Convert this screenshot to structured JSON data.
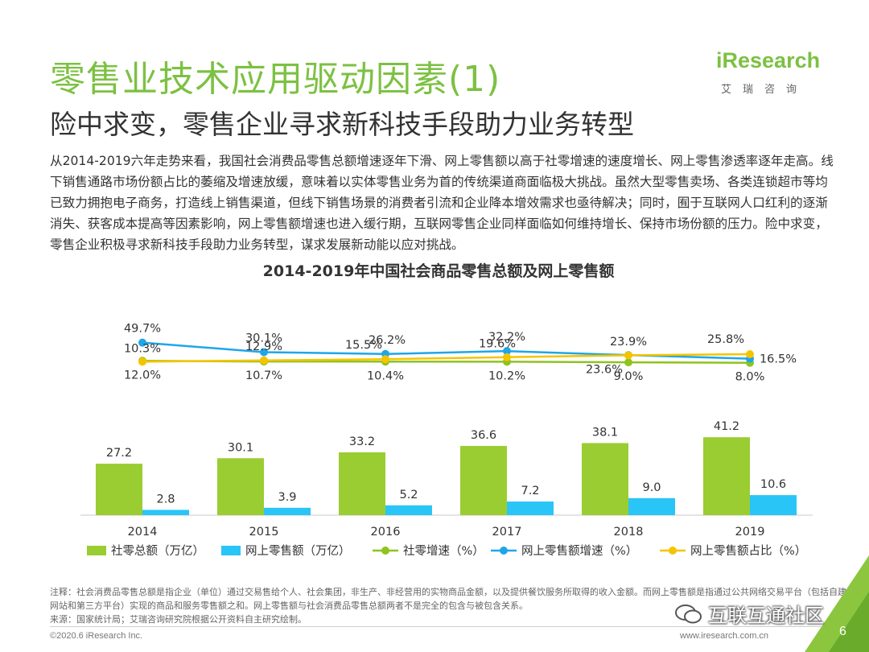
{
  "header": {
    "title": "零售业技术应用驱动因素(1)",
    "subtitle": "险中求变，零售企业寻求新科技手段助力业务转型"
  },
  "logo": {
    "main": "iResearch",
    "sub": "艾瑞咨询"
  },
  "body_text": "从2014-2019六年走势来看，我国社会消费品零售总额增速逐年下滑、网上零售额以高于社零增速的速度增长、网上零售渗透率逐年走高。线下销售通路市场份额占比的萎缩及增速放缓，意味着以实体零售业务为首的传统渠道商面临极大挑战。虽然大型零售卖场、各类连锁超市等均已致力拥抱电子商务，打造线上销售渠道，但线下销售场景的消费者引流和企业降本增效需求也亟待解决；同时，囿于互联网人口红利的逐渐消失、获客成本提高等因素影响，网上零售额增速也进入缓行期，互联网零售企业同样面临如何维持增长、保持市场份额的压力。险中求变，零售企业积极寻求新科技手段助力业务转型，谋求发展新动能以应对挑战。",
  "chart_data": {
    "type": "bar",
    "title": "2014-2019年中国社会商品零售总额及网上零售额",
    "categories": [
      "2014",
      "2015",
      "2016",
      "2017",
      "2018",
      "2019"
    ],
    "bar_series": [
      {
        "name": "社零总额（万亿）",
        "color": "#9acd32",
        "values": [
          27.2,
          30.1,
          33.2,
          36.6,
          38.1,
          41.2
        ],
        "labels": [
          "27.2",
          "30.1",
          "33.2",
          "36.6",
          "38.1",
          "41.2"
        ]
      },
      {
        "name": "网上零售额（万亿）",
        "color": "#29c5f6",
        "values": [
          2.8,
          3.9,
          5.2,
          7.2,
          9.0,
          10.6
        ],
        "labels": [
          "2.8",
          "3.9",
          "5.2",
          "7.2",
          "9.0",
          "10.6"
        ]
      }
    ],
    "line_series": [
      {
        "name": "社零增速（%）",
        "color": "#8fc31f",
        "values": [
          12.0,
          10.7,
          10.4,
          10.2,
          9.0,
          8.0
        ],
        "labels": [
          "12.0%",
          "10.7%",
          "10.4%",
          "10.2%",
          "9.0%",
          "8.0%"
        ]
      },
      {
        "name": "网上零售额增速（%）",
        "color": "#1fa6e8",
        "values": [
          49.7,
          30.1,
          26.2,
          32.2,
          23.9,
          16.5
        ],
        "labels": [
          "49.7%",
          "30.1%",
          "26.2%",
          "32.2%",
          "23.9%",
          "16.5%"
        ]
      },
      {
        "name": "网上零售额占比（%）",
        "color": "#f5c400",
        "values": [
          10.3,
          12.9,
          15.5,
          19.6,
          23.6,
          25.8
        ],
        "labels": [
          "10.3%",
          "12.9%",
          "15.5%",
          "19.6%",
          "23.6%",
          "25.8%"
        ]
      }
    ],
    "legend_position": "bottom",
    "grid": false
  },
  "footnote": {
    "note": "注释：社会消费品零售总额是指企业（单位）通过交易售给个人、社会集团，非生产、非经营用的实物商品金额，以及提供餐饮服务所取得的收入金额。而网上零售额是指通过公共网络交易平台（包括自建网站和第三方平台）实现的商品和服务零售额之和。网上零售额与社会消费品零售总额两者不是完全的包含与被包含关系。",
    "source": "来源：国家统计局；艾瑞咨询研究院根据公开资料自主研究绘制。"
  },
  "footer": {
    "copyright": "©2020.6 iResearch Inc.",
    "site": "www.iresearch.com.cn",
    "page": "6",
    "watermark": "互联互通社区"
  }
}
